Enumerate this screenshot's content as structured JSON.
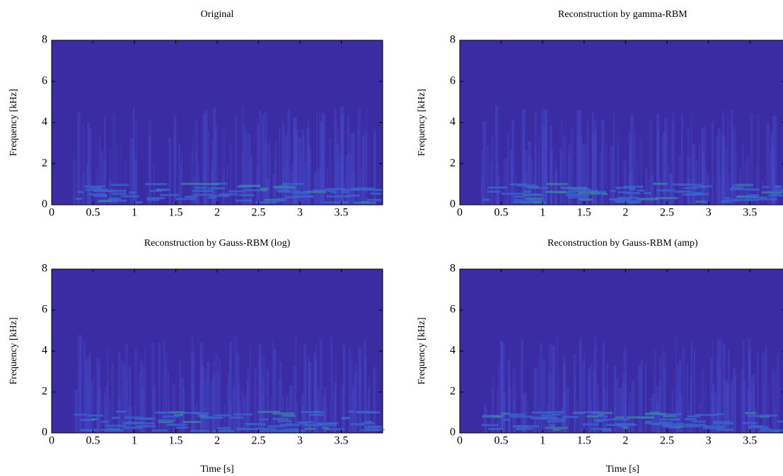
{
  "chart_data": [
    {
      "type": "spectrogram",
      "title": "Original",
      "ylabel": "Frequency [kHz]",
      "xlim": [
        0,
        4
      ],
      "ylim": [
        0,
        8
      ],
      "xticks": [
        0,
        0.5,
        1,
        1.5,
        2,
        2.5,
        3,
        3.5
      ],
      "yticks": [
        0,
        2,
        4,
        6,
        8
      ],
      "color": "#3b2ca4"
    },
    {
      "type": "spectrogram",
      "title": "Reconstruction by gamma-RBM",
      "ylabel": "Frequency [kHz]",
      "xlim": [
        0,
        3.93
      ],
      "ylim": [
        0,
        8
      ],
      "xticks": [
        0,
        0.5,
        1,
        1.5,
        2,
        2.5,
        3,
        3.5
      ],
      "yticks": [
        0,
        2,
        4,
        6,
        8
      ],
      "color": "#3b2ca4"
    },
    {
      "type": "spectrogram",
      "title": "Reconstruction by Gauss-RBM (log)",
      "xlabel": "Time [s]",
      "ylabel": "Frequency [kHz]",
      "xlim": [
        0,
        4
      ],
      "ylim": [
        0,
        8
      ],
      "xticks": [
        0,
        0.5,
        1,
        1.5,
        2,
        2.5,
        3,
        3.5
      ],
      "yticks": [
        0,
        2,
        4,
        6,
        8
      ],
      "color": "#3b2ca4"
    },
    {
      "type": "spectrogram",
      "title": "Reconstruction by Gauss-RBM (amp)",
      "xlabel": "Time [s]",
      "ylabel": "Frequency [kHz]",
      "xlim": [
        0,
        3.93
      ],
      "ylim": [
        0,
        8
      ],
      "xticks": [
        0,
        0.5,
        1,
        1.5,
        2,
        2.5,
        3,
        3.5
      ],
      "yticks": [
        0,
        2,
        4,
        6,
        8
      ],
      "color": "#3b2ca4"
    }
  ]
}
